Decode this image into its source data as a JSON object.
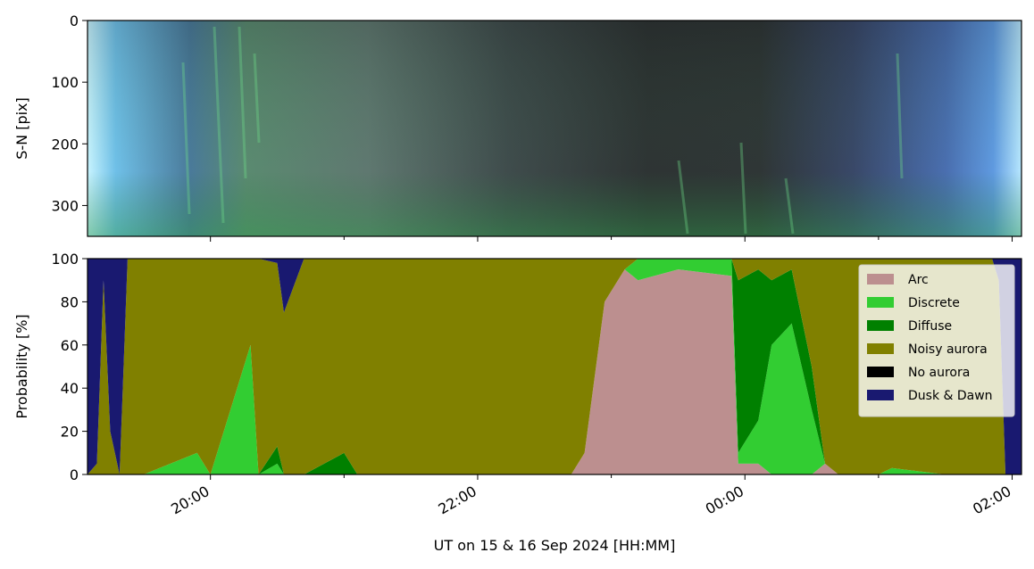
{
  "chart_data": [
    {
      "type": "image",
      "ylabel": "S-N [pix]",
      "ylim": [
        350,
        0
      ],
      "yticks": [
        0,
        100,
        200,
        300
      ]
    },
    {
      "type": "stacked_area",
      "xlabel": "UT on 15 & 16 Sep 2024 [HH:MM]",
      "ylabel": "Probability [%]",
      "xlim": [
        19.08,
        26.07
      ],
      "xticks": [
        {
          "value": 20,
          "label": "20:00"
        },
        {
          "value": 22,
          "label": "22:00"
        },
        {
          "value": 24,
          "label": "00:00"
        },
        {
          "value": 26,
          "label": "02:00"
        }
      ],
      "xminorticks": [
        21,
        23,
        25
      ],
      "ylim": [
        0,
        100
      ],
      "yticks": [
        0,
        20,
        40,
        60,
        80,
        100
      ],
      "legend": "upper right",
      "x": [
        19.08,
        19.15,
        19.2,
        19.25,
        19.32,
        19.38,
        19.5,
        19.9,
        20.0,
        20.3,
        20.36,
        20.5,
        20.55,
        20.7,
        21.0,
        21.1,
        21.5,
        22.0,
        22.7,
        22.8,
        22.95,
        23.1,
        23.2,
        23.5,
        23.9,
        23.95,
        24.1,
        24.2,
        24.35,
        24.5,
        24.6,
        24.7,
        25.0,
        25.1,
        25.5,
        25.85,
        25.9,
        25.95,
        26.07
      ],
      "series": [
        {
          "name": "Arc",
          "color": "#bc8f8f",
          "values": [
            0,
            0,
            0,
            0,
            0,
            0,
            0,
            0,
            0,
            0,
            0,
            0,
            0,
            0,
            0,
            0,
            0,
            0,
            0,
            10,
            80,
            95,
            90,
            95,
            92,
            5,
            5,
            0,
            0,
            0,
            5,
            0,
            0,
            0,
            0,
            0,
            0,
            0,
            0
          ]
        },
        {
          "name": "Discrete",
          "color": "#32cd32",
          "values": [
            0,
            0,
            0,
            0,
            0,
            0,
            0,
            10,
            0,
            60,
            0,
            5,
            0,
            0,
            0,
            0,
            0,
            0,
            0,
            0,
            0,
            0,
            10,
            5,
            8,
            5,
            20,
            60,
            70,
            30,
            0,
            0,
            0,
            3,
            0,
            0,
            0,
            0,
            0
          ]
        },
        {
          "name": "Diffuse",
          "color": "#008000",
          "values": [
            0,
            0,
            0,
            0,
            0,
            0,
            0,
            0,
            0,
            0,
            0,
            8,
            0,
            0,
            10,
            0,
            0,
            0,
            0,
            0,
            0,
            0,
            0,
            0,
            0,
            80,
            70,
            30,
            25,
            20,
            0,
            0,
            0,
            0,
            0,
            0,
            0,
            0,
            0
          ]
        },
        {
          "name": "Noisy aurora",
          "color": "#808000",
          "values": [
            0,
            5,
            90,
            20,
            0,
            100,
            100,
            90,
            100,
            40,
            100,
            85,
            75,
            100,
            90,
            100,
            100,
            100,
            100,
            90,
            20,
            5,
            0,
            0,
            0,
            10,
            5,
            10,
            5,
            50,
            95,
            100,
            100,
            97,
            100,
            100,
            90,
            0,
            0
          ]
        },
        {
          "name": "No aurora",
          "color": "#000000",
          "values": [
            0,
            0,
            0,
            0,
            0,
            0,
            0,
            0,
            0,
            0,
            0,
            0,
            0,
            0,
            0,
            0,
            0,
            0,
            0,
            0,
            0,
            0,
            0,
            0,
            0,
            0,
            0,
            0,
            0,
            0,
            0,
            0,
            0,
            0,
            0,
            0,
            0,
            0,
            0
          ]
        },
        {
          "name": "Dusk & Dawn",
          "color": "#191970",
          "values": [
            100,
            95,
            10,
            80,
            100,
            0,
            0,
            0,
            0,
            0,
            0,
            2,
            25,
            0,
            0,
            0,
            0,
            0,
            0,
            0,
            0,
            0,
            0,
            0,
            0,
            0,
            0,
            0,
            0,
            0,
            0,
            0,
            0,
            0,
            0,
            0,
            10,
            100,
            100
          ]
        }
      ]
    }
  ]
}
